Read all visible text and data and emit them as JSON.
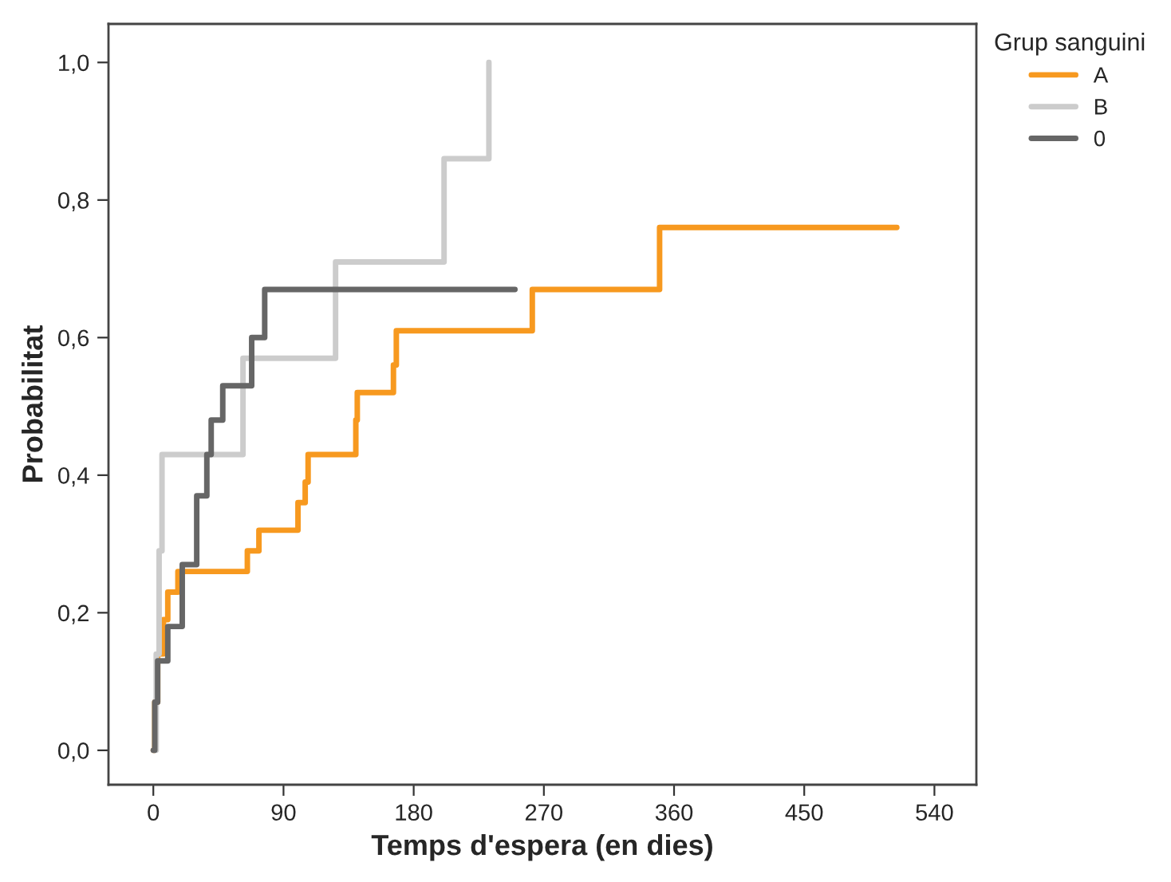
{
  "chart_data": {
    "type": "step",
    "xlabel": "Temps d'espera (en dies)",
    "ylabel": "Probabilitat",
    "legend_title": "Grup sanguini",
    "legend": "top right",
    "grid": false,
    "xlim": [
      -31,
      569
    ],
    "ylim": [
      -0.05,
      1.056
    ],
    "xticks": [
      0,
      90,
      180,
      270,
      360,
      450,
      540
    ],
    "yticks": [
      {
        "value": 0,
        "label": "0,0"
      },
      {
        "value": 0.2,
        "label": "0,2"
      },
      {
        "value": 0.4,
        "label": "0,4"
      },
      {
        "value": 0.6,
        "label": "0,6"
      },
      {
        "value": 0.8,
        "label": "0,8"
      },
      {
        "value": 1,
        "label": "1,0"
      }
    ],
    "series": [
      {
        "name": "A",
        "color": "#f7991f",
        "x": [
          0,
          1,
          3,
          7,
          10,
          17,
          65,
          73,
          100,
          105,
          107,
          140,
          141,
          166,
          168,
          262,
          350,
          514
        ],
        "values": [
          0,
          0.07,
          0.14,
          0.19,
          0.23,
          0.26,
          0.29,
          0.32,
          0.36,
          0.39,
          0.43,
          0.48,
          0.52,
          0.56,
          0.61,
          0.67,
          0.76,
          0.76
        ]
      },
      {
        "name": "B",
        "color": "#cccccc",
        "x": [
          0,
          2,
          4,
          6,
          62,
          126,
          201,
          232
        ],
        "values": [
          0,
          0.14,
          0.29,
          0.43,
          0.57,
          0.71,
          0.86,
          1.0
        ]
      },
      {
        "name": "0",
        "color": "#666666",
        "x": [
          0,
          1,
          3,
          10,
          20,
          30,
          37,
          40,
          48,
          68,
          77,
          250
        ],
        "values": [
          0,
          0.07,
          0.13,
          0.18,
          0.27,
          0.37,
          0.43,
          0.48,
          0.53,
          0.6,
          0.67,
          0.67
        ]
      }
    ]
  }
}
